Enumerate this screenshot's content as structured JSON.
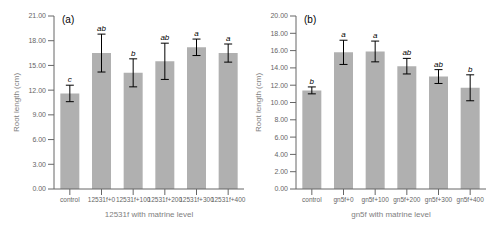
{
  "chart_data": [
    {
      "type": "bar",
      "annotations": [
        "(a)"
      ],
      "categories": [
        "control",
        "12531f+0",
        "12531f+100",
        "12531f+200",
        "12531f+300",
        "12531f+400"
      ],
      "values": [
        11.6,
        16.5,
        14.1,
        15.5,
        17.2,
        16.5
      ],
      "errors": [
        1.0,
        2.3,
        1.7,
        2.2,
        1.0,
        1.1
      ],
      "letters": [
        "c",
        "ab",
        "b",
        "ab",
        "a",
        "a"
      ],
      "xlabel": "12531f with matrine level",
      "ylabel": "Root length (cm)",
      "ylim": [
        0,
        21.0
      ],
      "yticks": [
        {
          "value": 0,
          "label": "0.00"
        },
        {
          "value": 3,
          "label": "3.00"
        },
        {
          "value": 6,
          "label": "6.00"
        },
        {
          "value": 9,
          "label": "9.00"
        },
        {
          "value": 12,
          "label": "12.00"
        },
        {
          "value": 15,
          "label": "15.00"
        },
        {
          "value": 18,
          "label": "18.00"
        },
        {
          "value": 21,
          "label": "21.00"
        }
      ],
      "color": "#b0b0b0",
      "grid": false
    },
    {
      "type": "bar",
      "annotations": [
        "(b)"
      ],
      "categories": [
        "control",
        "gn5f+0",
        "gn5f+100",
        "gn5f+200",
        "gn5f+300",
        "gn5f+400"
      ],
      "values": [
        11.4,
        15.8,
        15.9,
        14.2,
        13.0,
        11.7
      ],
      "errors": [
        0.4,
        1.4,
        1.2,
        0.9,
        0.8,
        1.5
      ],
      "letters": [
        "b",
        "a",
        "a",
        "ab",
        "ab",
        "b"
      ],
      "xlabel": "gn5f with matrine level",
      "ylabel": "Root length (cm)",
      "ylim": [
        0,
        20.0
      ],
      "yticks": [
        {
          "value": 0,
          "label": "0.00"
        },
        {
          "value": 2,
          "label": "2.00"
        },
        {
          "value": 4,
          "label": "4.00"
        },
        {
          "value": 6,
          "label": "6.00"
        },
        {
          "value": 8,
          "label": "8.00"
        },
        {
          "value": 10,
          "label": "10.00"
        },
        {
          "value": 12,
          "label": "12.00"
        },
        {
          "value": 14,
          "label": "14.00"
        },
        {
          "value": 16,
          "label": "16.00"
        },
        {
          "value": 18,
          "label": "18.00"
        },
        {
          "value": 20,
          "label": "20.00"
        }
      ],
      "color": "#b0b0b0",
      "grid": false
    }
  ]
}
